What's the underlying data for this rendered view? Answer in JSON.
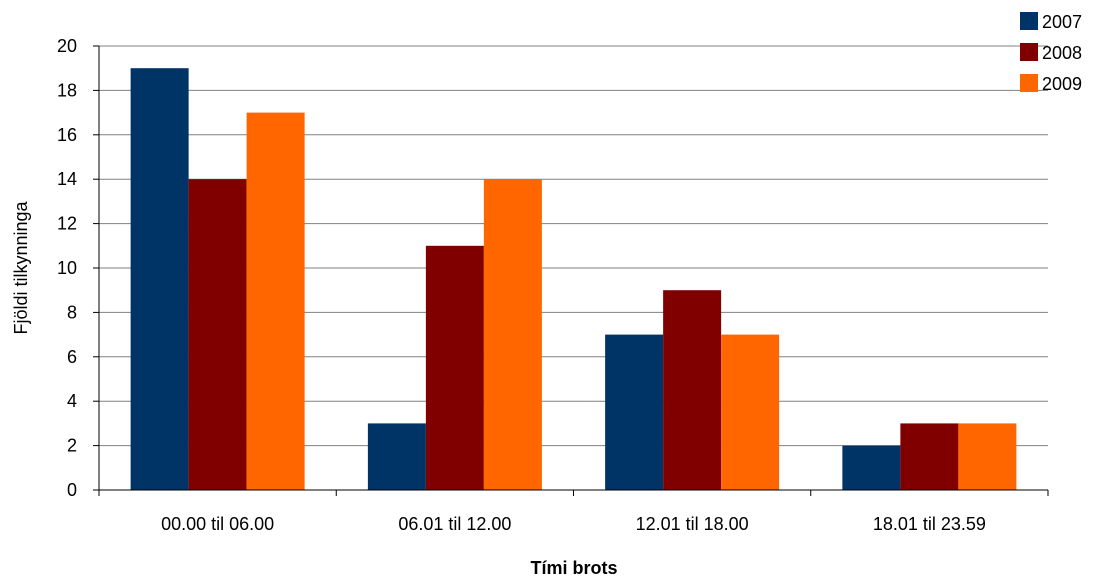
{
  "chart_data": {
    "type": "bar",
    "title": "",
    "xlabel": "Tími brots",
    "ylabel": "Fjöldi tilkynninga",
    "categories": [
      "00.00 til 06.00",
      "06.01 til 12.00",
      "12.01 til 18.00",
      "18.01 til 23.59"
    ],
    "series": [
      {
        "name": "2007",
        "values": [
          19,
          3,
          7,
          2
        ],
        "color": "#003366"
      },
      {
        "name": "2008",
        "values": [
          14,
          11,
          9,
          3
        ],
        "color": "#800000"
      },
      {
        "name": "2009",
        "values": [
          17,
          14,
          7,
          3
        ],
        "color": "#FF6600"
      }
    ],
    "ylim": [
      0,
      20
    ],
    "yticks": [
      0,
      2,
      4,
      6,
      8,
      10,
      12,
      14,
      16,
      18,
      20
    ],
    "grid": true,
    "legend_position": "top-right"
  }
}
